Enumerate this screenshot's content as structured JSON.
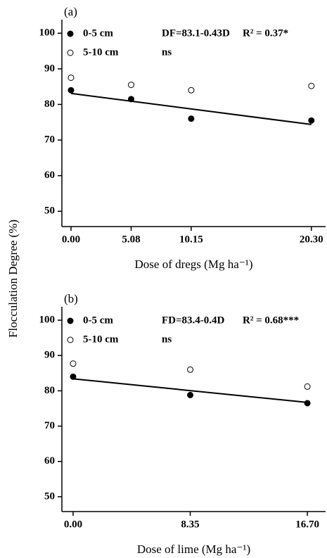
{
  "chart_data": [
    {
      "type": "scatter",
      "panel_label": "(a)",
      "y_label": "Flocculation Degree (%)",
      "x_label": "Dose of dregs (Mg ha⁻¹)",
      "x": [
        0,
        5.08,
        10.15,
        20.3
      ],
      "series": [
        {
          "name": "0-5 cm",
          "color": "#000000",
          "values": [
            84,
            81.5,
            76,
            75.5
          ],
          "equation": "DF=83.1-0.43D",
          "r2": "R² = 0.37*",
          "fit": {
            "intercept": 83.1,
            "slope": -0.43
          }
        },
        {
          "name": "5-10 cm",
          "color": "#ffffff",
          "values": [
            87.5,
            85.5,
            84,
            85.2
          ],
          "equation": "ns"
        }
      ],
      "xlim": [
        -0.77,
        21.5
      ],
      "xticks": [
        {
          "value": 0,
          "label": "0.00"
        },
        5.08,
        10.15,
        {
          "value": 20.3,
          "label": "20.30"
        }
      ],
      "ylim": [
        45.7,
        103.8
      ],
      "yticks": [
        50,
        60,
        70,
        80,
        90,
        100
      ]
    },
    {
      "type": "scatter",
      "panel_label": "(b)",
      "x_label": "Dose of lime (Mg ha⁻¹)",
      "x": [
        0,
        8.35,
        16.7
      ],
      "series": [
        {
          "name": "0-5 cm",
          "color": "#000000",
          "values": [
            84,
            78.8,
            76.5
          ],
          "equation": "FD=83.4-0.4D",
          "r2": "R² = 0.68***",
          "fit": {
            "intercept": 83.4,
            "slope": -0.4
          }
        },
        {
          "name": "5-10 cm",
          "color": "#ffffff",
          "values": [
            87.7,
            86,
            81.2
          ],
          "equation": "ns"
        }
      ],
      "xlim": [
        -0.8,
        18.0
      ],
      "xticks": [
        {
          "value": 0,
          "label": "0.00"
        },
        8.35,
        {
          "value": 16.7,
          "label": "16.70"
        }
      ],
      "ylim": [
        45.8,
        103.8
      ],
      "yticks": [
        50,
        60,
        70,
        80,
        90,
        100
      ]
    }
  ]
}
